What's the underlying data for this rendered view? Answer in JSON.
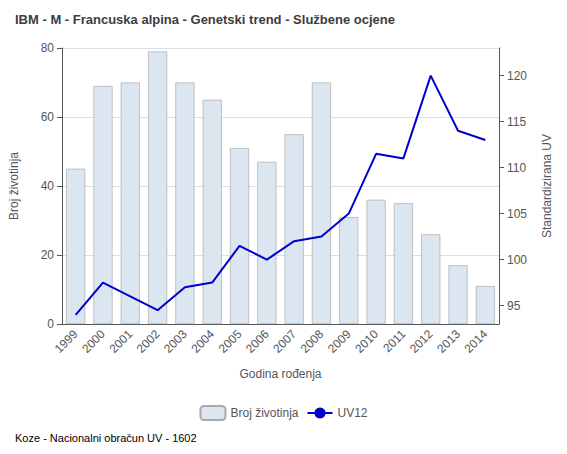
{
  "chart_data": {
    "type": "bar",
    "title": "IBM - M - Francuska alpina - Genetski trend - Službene ocjene",
    "xlabel": "Godina rođenja",
    "ylabel": "Broj životinja",
    "y2label": "Standardizirana UV",
    "annotation": "Koze - Nacionalni obračun UV - 1602",
    "categories": [
      "1999",
      "2000",
      "2001",
      "2002",
      "2003",
      "2004",
      "2005",
      "2006",
      "2007",
      "2008",
      "2009",
      "2010",
      "2011",
      "2012",
      "2013",
      "2014"
    ],
    "series": [
      {
        "name": "Broj životinja",
        "type": "bar",
        "color": "#dce6f1",
        "values": [
          45,
          69,
          70,
          79,
          70,
          65,
          51,
          47,
          55,
          70,
          31,
          36,
          35,
          26,
          17,
          11
        ]
      },
      {
        "name": "UV12",
        "type": "line",
        "color": "#0000cc",
        "axis": "y2",
        "values": [
          94.0,
          97.5,
          96.0,
          94.5,
          97.0,
          97.5,
          101.5,
          100.0,
          102.0,
          102.5,
          105.0,
          111.5,
          111.0,
          120.0,
          114.0,
          113.0
        ]
      }
    ],
    "ylim": [
      0,
      80
    ],
    "yticks": [
      0,
      20,
      40,
      60,
      80
    ],
    "y2lim": [
      93,
      123
    ],
    "y2ticks": [
      95,
      100,
      105,
      110,
      115,
      120
    ],
    "grid": true,
    "legend": "bottom"
  }
}
